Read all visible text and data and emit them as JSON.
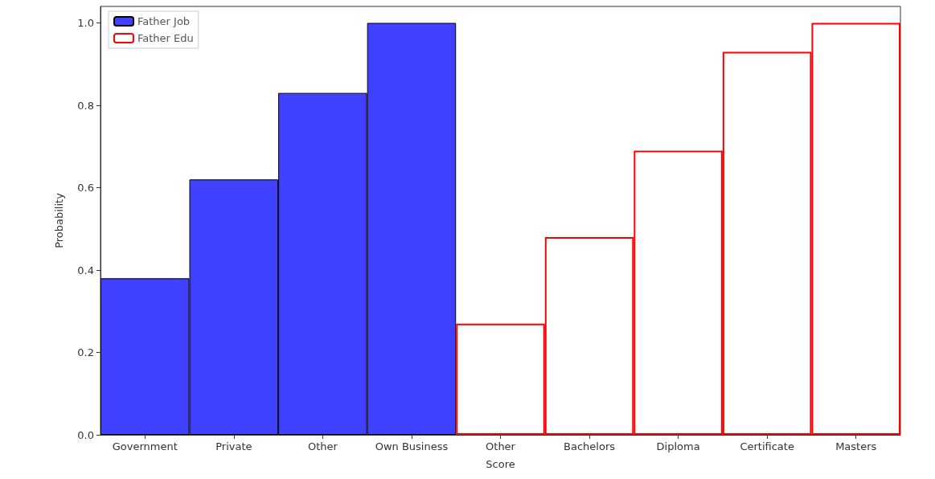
{
  "chart_data": {
    "type": "bar",
    "xlabel": "Score",
    "ylabel": "Probability",
    "categories": [
      "Government",
      "Private",
      "Other",
      "Own Business",
      "Other",
      "Bachelors",
      "Diploma",
      "Certificate",
      "Masters"
    ],
    "series": [
      {
        "name": "Father Job",
        "color": "#4040ff",
        "values": [
          0.38,
          0.62,
          0.83,
          1.0,
          null,
          null,
          null,
          null,
          null
        ]
      },
      {
        "name": "Father Edu",
        "color": "#ff0000",
        "values": [
          null,
          null,
          null,
          null,
          0.27,
          0.48,
          0.69,
          0.93,
          1.0
        ]
      }
    ],
    "ylim": [
      0,
      1.04
    ],
    "yticks": [
      {
        "value": 0,
        "label": "0.0"
      },
      {
        "value": 0.2,
        "label": "0.2"
      },
      {
        "value": 0.4,
        "label": "0.4"
      },
      {
        "value": 0.6,
        "label": "0.6"
      },
      {
        "value": 0.8,
        "label": "0.8"
      },
      {
        "value": 1,
        "label": "1.0"
      }
    ],
    "grid": false,
    "legend": "top left"
  }
}
